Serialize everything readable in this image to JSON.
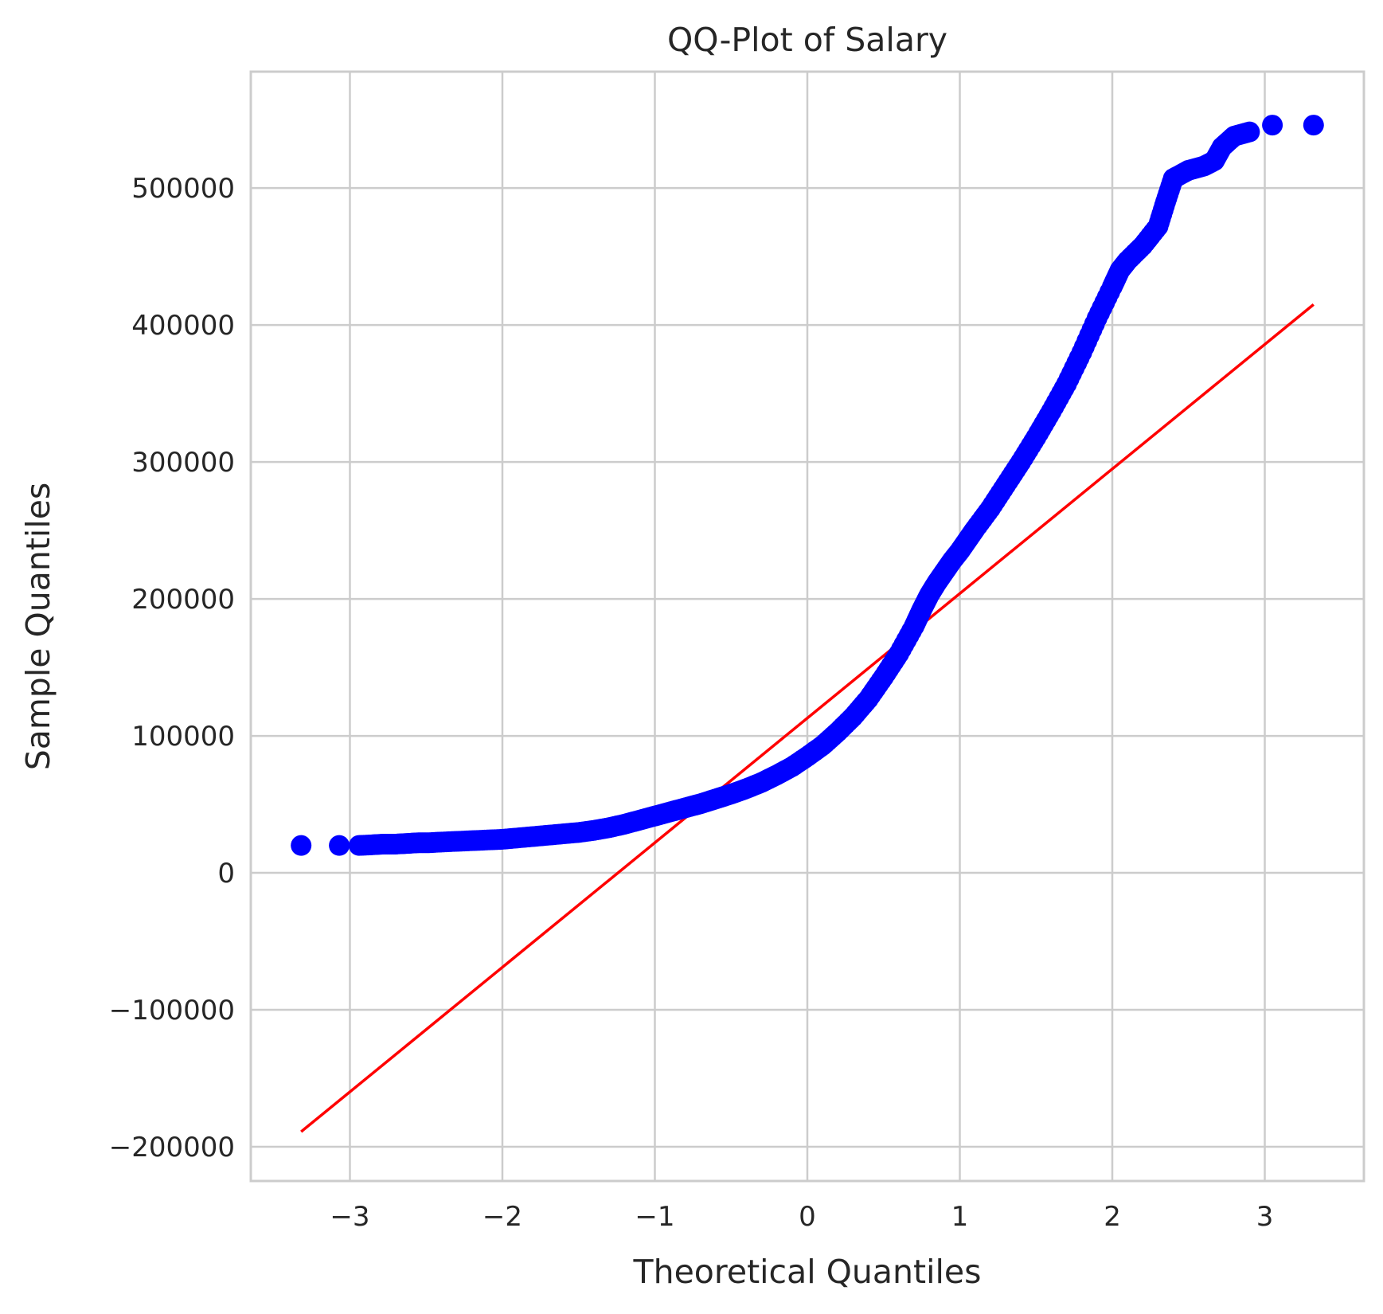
{
  "chart_data": {
    "type": "scatter",
    "title": "QQ-Plot of Salary",
    "xlabel": "Theoretical Quantiles",
    "ylabel": "Sample Quantiles",
    "xlim": [
      -3.65,
      3.65
    ],
    "ylim": [
      -225000,
      585000
    ],
    "x_ticks": [
      -3,
      -2,
      -1,
      0,
      1,
      2,
      3
    ],
    "x_tick_labels": [
      "−3",
      "−2",
      "−1",
      "0",
      "1",
      "2",
      "3"
    ],
    "y_ticks": [
      -200000,
      -100000,
      0,
      100000,
      200000,
      300000,
      400000,
      500000
    ],
    "y_tick_labels": [
      "−200000",
      "−100000",
      "0",
      "100000",
      "200000",
      "300000",
      "400000",
      "500000"
    ],
    "grid": true,
    "colors": {
      "points": "#0000ff",
      "line": "#ff0000"
    },
    "series": [
      {
        "kind": "points",
        "x": [
          -3.32,
          -3.07,
          -2.94,
          -2.85,
          -2.78,
          -2.7,
          -2.62,
          -2.55,
          -2.48,
          -2.4,
          -2.3,
          -2.2,
          -2.1,
          -2.0,
          -1.9,
          -1.8,
          -1.7,
          -1.6,
          -1.5,
          -1.4,
          -1.3,
          -1.2,
          -1.1,
          -1.0,
          -0.9,
          -0.8,
          -0.7,
          -0.6,
          -0.5,
          -0.4,
          -0.3,
          -0.2,
          -0.1,
          0.0,
          0.1,
          0.2,
          0.3,
          0.4,
          0.5,
          0.6,
          0.7,
          0.75,
          0.8,
          0.85,
          0.9,
          0.95,
          1.0,
          1.05,
          1.1,
          1.2,
          1.3,
          1.4,
          1.5,
          1.6,
          1.7,
          1.8,
          1.9,
          2.0,
          2.05,
          2.1,
          2.2,
          2.3,
          2.35,
          2.4,
          2.5,
          2.6,
          2.67,
          2.72,
          2.8,
          2.9,
          3.05,
          3.32
        ],
        "y": [
          20000,
          20000,
          20000,
          20500,
          21000,
          21000,
          21500,
          22000,
          22000,
          22500,
          23000,
          23500,
          24000,
          24500,
          25500,
          26500,
          27500,
          28500,
          29500,
          31000,
          33000,
          35500,
          38500,
          41500,
          44500,
          47500,
          50500,
          54000,
          57500,
          61500,
          66000,
          71500,
          77500,
          85000,
          93000,
          103000,
          114000,
          127000,
          143000,
          160000,
          180000,
          192000,
          203000,
          212000,
          220000,
          228000,
          235000,
          243000,
          251000,
          266000,
          283000,
          300000,
          318000,
          337000,
          357000,
          380000,
          405000,
          428000,
          440000,
          447000,
          458000,
          472000,
          490000,
          507000,
          513000,
          516000,
          520000,
          530000,
          538000,
          541000,
          546000,
          546000
        ]
      },
      {
        "kind": "line",
        "x": [
          -3.32,
          3.32
        ],
        "y": [
          -189000,
          415000
        ]
      }
    ]
  }
}
